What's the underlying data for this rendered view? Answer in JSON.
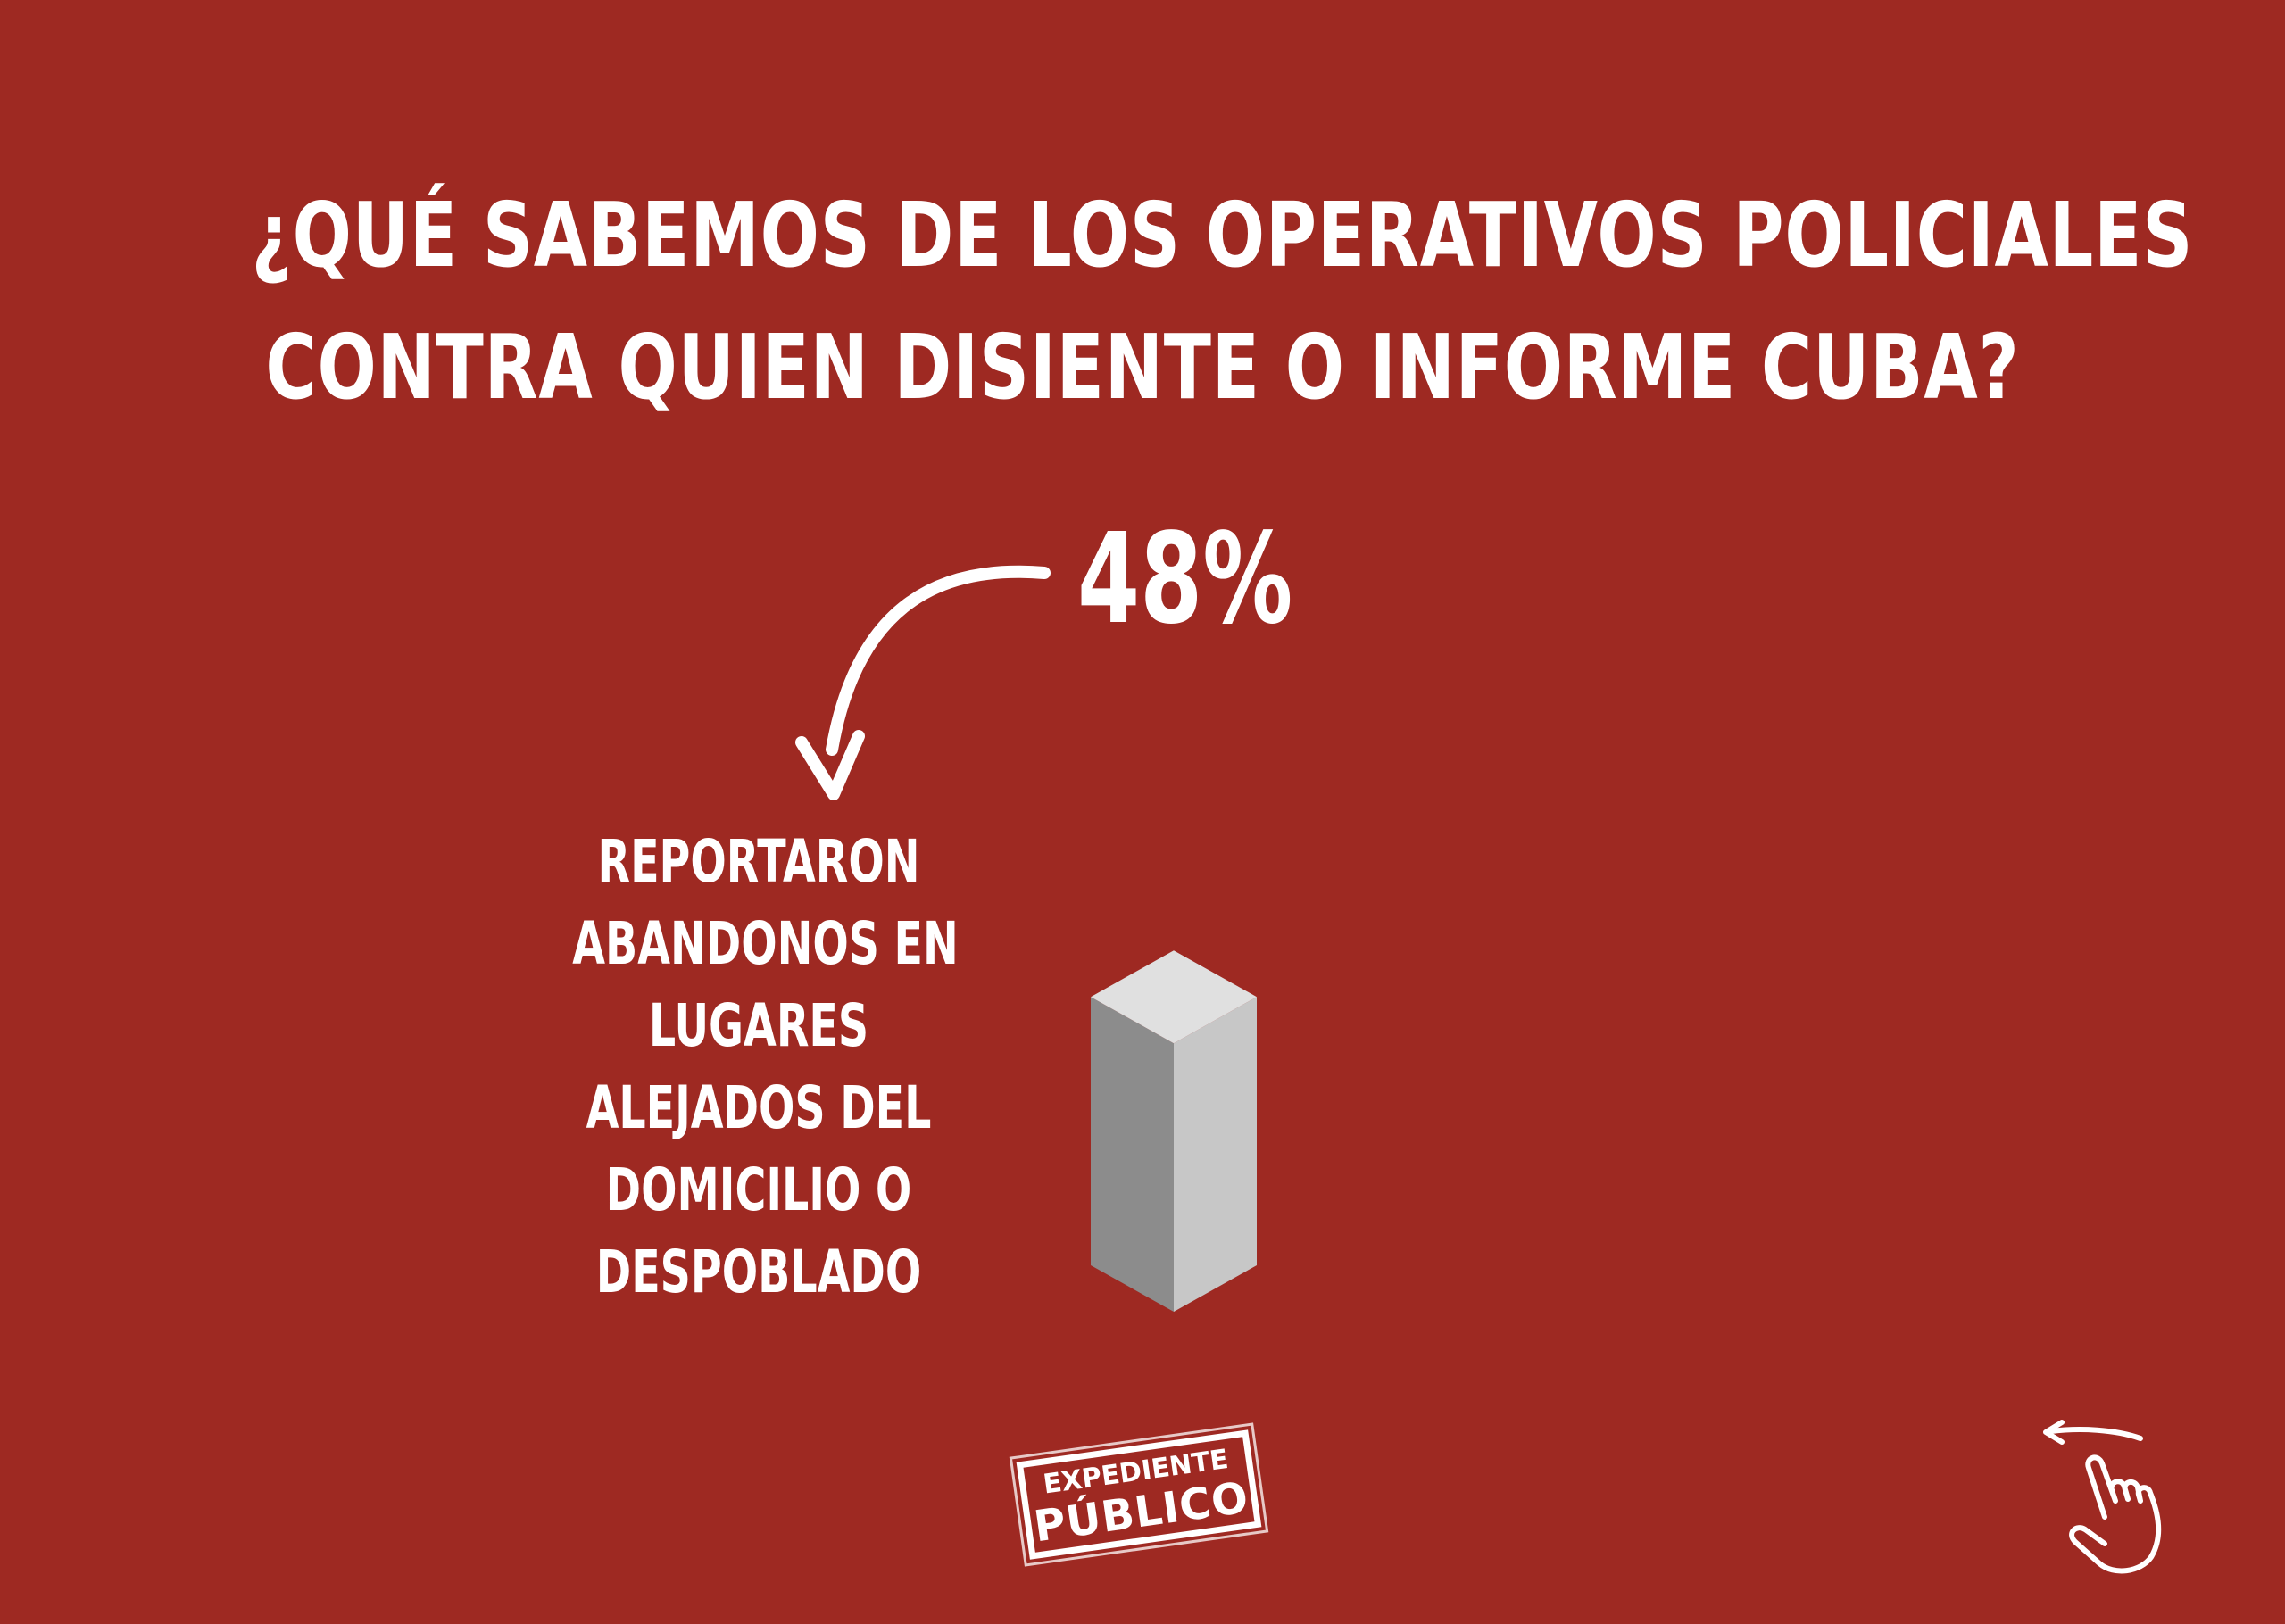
{
  "title": {
    "line1": "¿QUÉ SABEMOS DE LOS OPERATIVOS POLICIALES",
    "line2": "CONTRA QUIEN DISIENTE O INFORME CUBA?"
  },
  "statistic": {
    "value_label": "48%"
  },
  "description": {
    "lines": [
      "REPORTARON",
      "ABANDONOS EN",
      "LUGARES",
      "ALEJADOS DEL",
      "DOMICILIO O",
      "DESPOBLADO"
    ]
  },
  "logo": {
    "line1": "EXPEDIENTE",
    "line2": "PÚBLICO"
  },
  "icons": {
    "arrow": "curved-arrow-down-icon",
    "swipe": "swipe-left-hand-icon"
  },
  "colors": {
    "background": "#9e2922",
    "text": "#ffffff",
    "bar_front": "#8c8c8c",
    "bar_side": "#c7c7c7",
    "bar_top": "#e0e0e0"
  },
  "chart_data": {
    "type": "bar",
    "categories": [
      "REPORTARON ABANDONOS EN LUGARES ALEJADOS DEL DOMICILIO O DESPOBLADO"
    ],
    "values": [
      48
    ],
    "unit": "%",
    "ylim": [
      0,
      100
    ]
  }
}
